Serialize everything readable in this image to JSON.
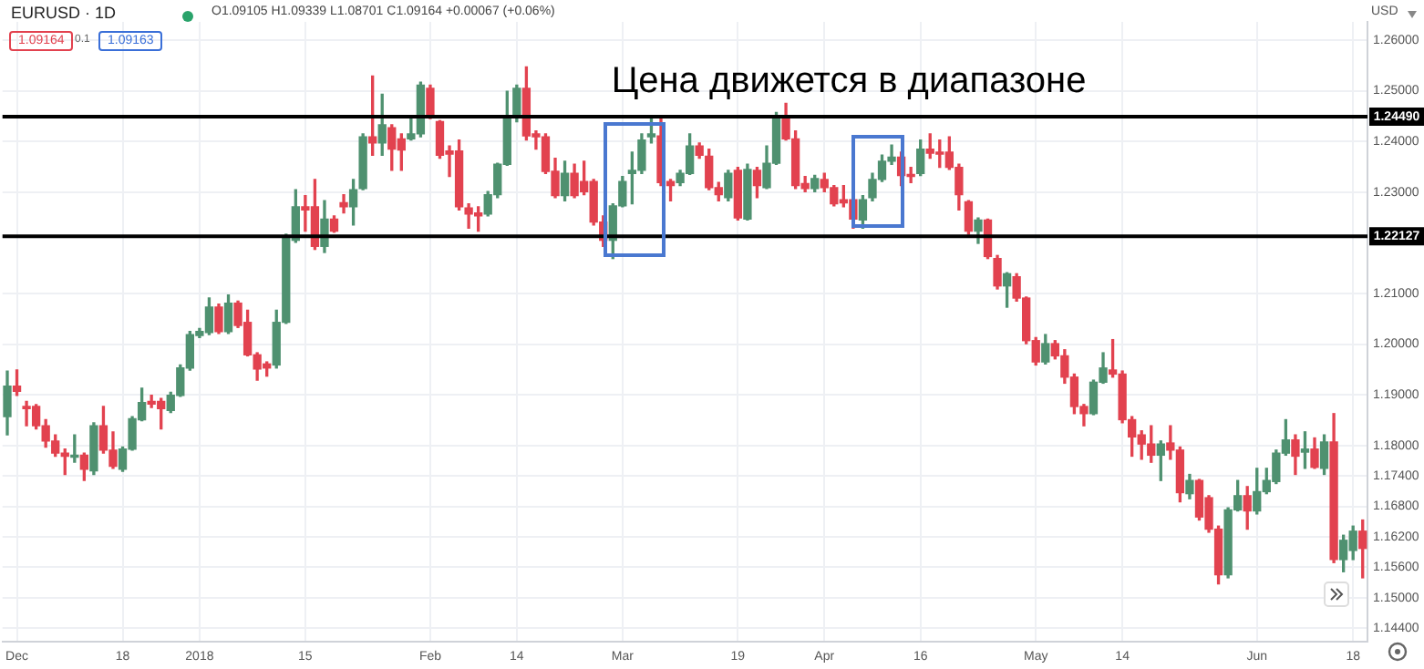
{
  "chart_data": {
    "type": "candlestick",
    "title": "Цена движется в диапазоне",
    "ylabel": "USD",
    "annotations": [
      "EURUSD · 1D",
      "O1.09105 H1.09339 L1.08701 C1.09164 +0.00067 (+0.06%)",
      "1.09164",
      "0.1",
      "1.09163"
    ],
    "categories": [
      null,
      "Dec",
      null,
      null,
      null,
      null,
      null,
      null,
      null,
      null,
      null,
      null,
      "18",
      null,
      null,
      null,
      null,
      null,
      null,
      null,
      "2018",
      null,
      null,
      null,
      null,
      null,
      null,
      null,
      null,
      null,
      null,
      "15",
      null,
      null,
      null,
      null,
      null,
      null,
      null,
      null,
      null,
      null,
      null,
      null,
      "Feb",
      null,
      null,
      null,
      null,
      null,
      null,
      null,
      null,
      "14",
      null,
      null,
      null,
      null,
      null,
      null,
      null,
      null,
      null,
      null,
      "Mar",
      null,
      null,
      null,
      null,
      null,
      null,
      null,
      null,
      null,
      null,
      null,
      "19",
      null,
      null,
      null,
      null,
      null,
      null,
      null,
      null,
      "Apr",
      null,
      null,
      null,
      null,
      null,
      null,
      null,
      null,
      null,
      "16",
      null,
      null,
      null,
      null,
      null,
      null,
      null,
      null,
      null,
      null,
      null,
      "May",
      null,
      null,
      null,
      null,
      null,
      null,
      null,
      null,
      "14",
      null,
      null,
      null,
      null,
      null,
      null,
      null,
      null,
      null,
      null,
      null,
      null,
      null,
      "Jun",
      null,
      null,
      null,
      null,
      null,
      null,
      null,
      null,
      null,
      "18",
      null
    ],
    "ohlc": [
      [
        1.1857,
        1.1947,
        1.1821,
        1.1917
      ],
      [
        1.1917,
        1.1949,
        1.1899,
        1.1907
      ],
      [
        1.1877,
        1.1887,
        1.1839,
        1.1873
      ],
      [
        1.1877,
        1.1881,
        1.1833,
        1.1839
      ],
      [
        1.1839,
        1.1851,
        1.1797,
        1.1809
      ],
      [
        1.1809,
        1.1821,
        1.1779,
        1.1785
      ],
      [
        1.1785,
        1.1793,
        1.1743,
        1.1779
      ],
      [
        1.1777,
        1.1821,
        1.1767,
        1.1781
      ],
      [
        1.1781,
        1.1785,
        1.1731,
        1.1753
      ],
      [
        1.175,
        1.1845,
        1.1743,
        1.1839
      ],
      [
        1.1839,
        1.1877,
        1.1785,
        1.1791
      ],
      [
        1.1791,
        1.1827,
        1.1755,
        1.1759
      ],
      [
        1.1753,
        1.1797,
        1.1749,
        1.1793
      ],
      [
        1.1793,
        1.1857,
        1.1791,
        1.1853
      ],
      [
        1.1851,
        1.1913,
        1.1849,
        1.1885
      ],
      [
        1.1887,
        1.1899,
        1.1875,
        1.1882
      ],
      [
        1.1887,
        1.1893,
        1.1833,
        1.1873
      ],
      [
        1.1869,
        1.1905,
        1.1865,
        1.1899
      ],
      [
        1.1899,
        1.1959,
        1.1897,
        1.1953
      ],
      [
        1.1953,
        1.2025,
        1.1949,
        1.2019
      ],
      [
        1.2017,
        1.2031,
        1.2013,
        1.2025
      ],
      [
        1.2023,
        1.2091,
        1.2019,
        1.2073
      ],
      [
        1.2073,
        1.2079,
        1.2021,
        1.2025
      ],
      [
        1.2025,
        1.2097,
        1.2021,
        1.2081
      ],
      [
        1.2081,
        1.2085,
        1.2033,
        1.2037
      ],
      [
        1.2043,
        1.2067,
        1.1977,
        1.1979
      ],
      [
        1.1979,
        1.1983,
        1.1929,
        1.1951
      ],
      [
        1.1961,
        1.1965,
        1.1937,
        1.1953
      ],
      [
        1.1959,
        1.2067,
        1.1953,
        1.2043
      ],
      [
        1.2043,
        1.2217,
        1.2041,
        1.2213
      ],
      [
        1.2205,
        1.2305,
        1.2201,
        1.2271
      ],
      [
        1.2271,
        1.2293,
        1.2223,
        1.2265
      ],
      [
        1.2271,
        1.2325,
        1.2187,
        1.2193
      ],
      [
        1.2193,
        1.2283,
        1.2181,
        1.2247
      ],
      [
        1.2247,
        1.2253,
        1.2221,
        1.2223
      ],
      [
        1.2279,
        1.2295,
        1.2259,
        1.2271
      ],
      [
        1.2271,
        1.2325,
        1.2235,
        1.2305
      ],
      [
        1.2307,
        1.2415,
        1.2305,
        1.2409
      ],
      [
        1.2409,
        1.2529,
        1.2373,
        1.2397
      ],
      [
        1.2397,
        1.2493,
        1.2373,
        1.2433
      ],
      [
        1.2427,
        1.2433,
        1.2343,
        1.2385
      ],
      [
        1.2405,
        1.2415,
        1.2343,
        1.2383
      ],
      [
        1.2405,
        1.2451,
        1.2403,
        1.2415
      ],
      [
        1.2415,
        1.2517,
        1.2409,
        1.2511
      ],
      [
        1.2505,
        1.2511,
        1.2445,
        1.2451
      ],
      [
        1.2439,
        1.2441,
        1.2367,
        1.2373
      ],
      [
        1.2381,
        1.2391,
        1.2331,
        1.2375
      ],
      [
        1.2381,
        1.2403,
        1.2265,
        1.2271
      ],
      [
        1.2269,
        1.2277,
        1.2229,
        1.2257
      ],
      [
        1.2259,
        1.2271,
        1.2223,
        1.2253
      ],
      [
        1.2257,
        1.2301,
        1.2253,
        1.2295
      ],
      [
        1.2295,
        1.2357,
        1.2289,
        1.2355
      ],
      [
        1.2355,
        1.2499,
        1.2353,
        1.2447
      ],
      [
        1.2447,
        1.2511,
        1.2439,
        1.2505
      ],
      [
        1.2505,
        1.2547,
        1.2403,
        1.2411
      ],
      [
        1.2415,
        1.2421,
        1.2385,
        1.2409
      ],
      [
        1.2409,
        1.2415,
        1.2337,
        1.2341
      ],
      [
        1.2341,
        1.2367,
        1.2289,
        1.2293
      ],
      [
        1.2293,
        1.2361,
        1.2283,
        1.2337
      ],
      [
        1.2337,
        1.2355,
        1.2289,
        1.2293
      ],
      [
        1.2321,
        1.2361,
        1.2295,
        1.2301
      ],
      [
        1.2321,
        1.2325,
        1.2235,
        1.2241
      ],
      [
        1.2241,
        1.2253,
        1.2193,
        1.2205
      ],
      [
        1.2205,
        1.2277,
        1.2169,
        1.2273
      ],
      [
        1.2273,
        1.2331,
        1.2271,
        1.2321
      ],
      [
        1.2337,
        1.2379,
        1.2277,
        1.2343
      ],
      [
        1.2343,
        1.2415,
        1.2337,
        1.2403
      ],
      [
        1.2409,
        1.2445,
        1.2397,
        1.2415
      ],
      [
        1.2411,
        1.2445,
        1.2313,
        1.2319
      ],
      [
        1.2321,
        1.2325,
        1.2283,
        1.2313
      ],
      [
        1.2319,
        1.2343,
        1.2313,
        1.2337
      ],
      [
        1.2337,
        1.2415,
        1.2335,
        1.2391
      ],
      [
        1.2391,
        1.2397,
        1.2367,
        1.2373
      ],
      [
        1.2371,
        1.2385,
        1.2305,
        1.2309
      ],
      [
        1.2309,
        1.2319,
        1.2283,
        1.2295
      ],
      [
        1.2289,
        1.2343,
        1.2283,
        1.2337
      ],
      [
        1.2343,
        1.2349,
        1.2245,
        1.2249
      ],
      [
        1.2247,
        1.2355,
        1.2245,
        1.2345
      ],
      [
        1.2343,
        1.2349,
        1.2289,
        1.2313
      ],
      [
        1.2309,
        1.2391,
        1.2307,
        1.2357
      ],
      [
        1.2357,
        1.2457,
        1.2355,
        1.2449
      ],
      [
        1.2449,
        1.2475,
        1.2403,
        1.2405
      ],
      [
        1.2405,
        1.2421,
        1.2307,
        1.2313
      ],
      [
        1.2317,
        1.2331,
        1.2301,
        1.2307
      ],
      [
        1.2307,
        1.2333,
        1.2301,
        1.2327
      ],
      [
        1.2325,
        1.2337,
        1.2301,
        1.2309
      ],
      [
        1.2309,
        1.2313,
        1.2273,
        1.2277
      ],
      [
        1.2285,
        1.2313,
        1.2271,
        1.2279
      ],
      [
        1.2285,
        1.2289,
        1.2229,
        1.2247
      ],
      [
        1.2245,
        1.2293,
        1.2229,
        1.2285
      ],
      [
        1.2289,
        1.2337,
        1.2283,
        1.2325
      ],
      [
        1.2325,
        1.2373,
        1.2321,
        1.2361
      ],
      [
        1.2361,
        1.2393,
        1.2355,
        1.2369
      ],
      [
        1.2369,
        1.2379,
        1.2313,
        1.2333
      ],
      [
        1.2335,
        1.2349,
        1.2319,
        1.2331
      ],
      [
        1.2337,
        1.2403,
        1.2333,
        1.2385
      ],
      [
        1.2385,
        1.2415,
        1.2367,
        1.2377
      ],
      [
        1.2379,
        1.2403,
        1.2349,
        1.2375
      ],
      [
        1.2379,
        1.2409,
        1.2345,
        1.2349
      ],
      [
        1.2349,
        1.2355,
        1.2265,
        1.2295
      ],
      [
        1.2281,
        1.2283,
        1.2217,
        1.2223
      ],
      [
        1.2223,
        1.2249,
        1.2199,
        1.2245
      ],
      [
        1.2245,
        1.2247,
        1.2169,
        1.2173
      ],
      [
        1.2169,
        1.2175,
        1.2109,
        1.2115
      ],
      [
        1.2115,
        1.2141,
        1.2073,
        1.2139
      ],
      [
        1.2133,
        1.2139,
        1.2085,
        1.2091
      ],
      [
        1.2091,
        1.2093,
        1.2001,
        1.2007
      ],
      [
        1.2007,
        1.2013,
        1.1959,
        1.1965
      ],
      [
        1.1965,
        1.2019,
        1.1961,
        1.2001
      ],
      [
        1.2001,
        1.2007,
        1.1971,
        1.1977
      ],
      [
        1.1977,
        1.1989,
        1.1923,
        1.1935
      ],
      [
        1.1935,
        1.1941,
        1.1863,
        1.1877
      ],
      [
        1.1877,
        1.1881,
        1.1839,
        1.1863
      ],
      [
        1.1863,
        1.1929,
        1.1861,
        1.1925
      ],
      [
        1.1925,
        1.1983,
        1.1923,
        1.1953
      ],
      [
        1.1949,
        1.2009,
        1.1935,
        1.1941
      ],
      [
        1.1941,
        1.1947,
        1.1845,
        1.1851
      ],
      [
        1.1851,
        1.1857,
        1.1779,
        1.1817
      ],
      [
        1.1821,
        1.1829,
        1.1773,
        1.1803
      ],
      [
        1.1803,
        1.1839,
        1.1767,
        1.1781
      ],
      [
        1.1781,
        1.1809,
        1.1731,
        1.1803
      ],
      [
        1.1805,
        1.1839,
        1.1773,
        1.1791
      ],
      [
        1.1791,
        1.1797,
        1.1689,
        1.1707
      ],
      [
        1.1705,
        1.1743,
        1.1695,
        1.1731
      ],
      [
        1.1731,
        1.1733,
        1.1653,
        1.1659
      ],
      [
        1.1697,
        1.1701,
        1.1629,
        1.1635
      ],
      [
        1.1635,
        1.1641,
        1.1527,
        1.1545
      ],
      [
        1.1545,
        1.1677,
        1.1539,
        1.1673
      ],
      [
        1.1673,
        1.1731,
        1.1671,
        1.1701
      ],
      [
        1.1701,
        1.1719,
        1.1635,
        1.1671
      ],
      [
        1.1671,
        1.1755,
        1.1665,
        1.1709
      ],
      [
        1.1709,
        1.1755,
        1.1705,
        1.1731
      ],
      [
        1.1729,
        1.1791,
        1.1725,
        1.1785
      ],
      [
        1.1785,
        1.1851,
        1.1781,
        1.1811
      ],
      [
        1.1811,
        1.1821,
        1.1743,
        1.1779
      ],
      [
        1.1787,
        1.1827,
        1.1755,
        1.1793
      ],
      [
        1.1793,
        1.1815,
        1.1755,
        1.1757
      ],
      [
        1.1755,
        1.1821,
        1.1743,
        1.1807
      ],
      [
        1.1807,
        1.1863,
        1.1569,
        1.1575
      ],
      [
        1.1575,
        1.1623,
        1.1551,
        1.1613
      ],
      [
        1.1593,
        1.1641,
        1.1575,
        1.1631
      ],
      [
        1.1631,
        1.1653,
        1.1539,
        1.1597
      ]
    ],
    "colors": [
      "#4f9170",
      "#e2424f",
      "#e2424f",
      "#e2424f",
      "#e2424f",
      "#e2424f",
      "#e2424f",
      "#4f9170",
      "#e2424f",
      "#4f9170",
      "#e2424f",
      "#e2424f",
      "#4f9170",
      "#4f9170",
      "#4f9170",
      "#e2424f",
      "#e2424f",
      "#4f9170",
      "#4f9170",
      "#4f9170",
      "#4f9170",
      "#4f9170",
      "#e2424f",
      "#4f9170",
      "#e2424f",
      "#e2424f",
      "#e2424f",
      "#e2424f",
      "#4f9170",
      "#4f9170",
      "#4f9170",
      "#e2424f",
      "#e2424f",
      "#4f9170",
      "#e2424f",
      "#e2424f",
      "#4f9170",
      "#4f9170",
      "#e2424f",
      "#4f9170",
      "#e2424f",
      "#e2424f",
      "#4f9170",
      "#4f9170",
      "#e2424f",
      "#e2424f",
      "#e2424f",
      "#e2424f",
      "#e2424f",
      "#e2424f",
      "#4f9170",
      "#4f9170",
      "#4f9170",
      "#4f9170",
      "#e2424f",
      "#e2424f",
      "#e2424f",
      "#e2424f",
      "#4f9170",
      "#e2424f",
      "#e2424f",
      "#e2424f",
      "#e2424f",
      "#4f9170",
      "#4f9170",
      "#4f9170",
      "#4f9170",
      "#4f9170",
      "#e2424f",
      "#e2424f",
      "#4f9170",
      "#4f9170",
      "#e2424f",
      "#e2424f",
      "#e2424f",
      "#4f9170",
      "#e2424f",
      "#4f9170",
      "#e2424f",
      "#4f9170",
      "#4f9170",
      "#e2424f",
      "#e2424f",
      "#e2424f",
      "#4f9170",
      "#e2424f",
      "#e2424f",
      "#e2424f",
      "#e2424f",
      "#4f9170",
      "#4f9170",
      "#4f9170",
      "#4f9170",
      "#e2424f",
      "#e2424f",
      "#4f9170",
      "#e2424f",
      "#e2424f",
      "#e2424f",
      "#e2424f",
      "#e2424f",
      "#4f9170",
      "#e2424f",
      "#e2424f",
      "#4f9170",
      "#e2424f",
      "#e2424f",
      "#e2424f",
      "#4f9170",
      "#e2424f",
      "#e2424f",
      "#e2424f",
      "#e2424f",
      "#4f9170",
      "#4f9170",
      "#e2424f",
      "#e2424f",
      "#e2424f",
      "#e2424f",
      "#e2424f",
      "#4f9170",
      "#e2424f",
      "#e2424f",
      "#4f9170",
      "#e2424f",
      "#e2424f",
      "#e2424f",
      "#4f9170",
      "#4f9170",
      "#e2424f",
      "#4f9170",
      "#4f9170",
      "#4f9170",
      "#4f9170",
      "#e2424f",
      "#4f9170",
      "#e2424f",
      "#4f9170",
      "#e2424f",
      "#4f9170",
      "#4f9170",
      "#e2424f"
    ],
    "ylim": [
      1.1413,
      1.2636
    ],
    "yticks": [
      {
        "value": 1.26,
        "label": "1.26000"
      },
      {
        "value": 1.25,
        "label": "1.25000"
      },
      {
        "value": 1.24,
        "label": "1.24000"
      },
      {
        "value": 1.23,
        "label": "1.23000"
      },
      {
        "value": 1.21,
        "label": "1.21000"
      },
      {
        "value": 1.2,
        "label": "1.20000"
      },
      {
        "value": 1.19,
        "label": "1.19000"
      },
      {
        "value": 1.18,
        "label": "1.18000"
      },
      {
        "value": 1.174,
        "label": "1.17400"
      },
      {
        "value": 1.168,
        "label": "1.16800"
      },
      {
        "value": 1.162,
        "label": "1.16200"
      },
      {
        "value": 1.156,
        "label": "1.15600"
      },
      {
        "value": 1.15,
        "label": "1.15000"
      },
      {
        "value": 1.144,
        "label": "1.14400"
      }
    ],
    "ref_lines": [
      {
        "axis": "y",
        "value": 1.2449,
        "label": "1.24490",
        "color": "#000000"
      },
      {
        "axis": "y",
        "value": 1.22127,
        "label": "1.22127",
        "color": "#000000"
      }
    ],
    "grid": true,
    "legend": false
  }
}
